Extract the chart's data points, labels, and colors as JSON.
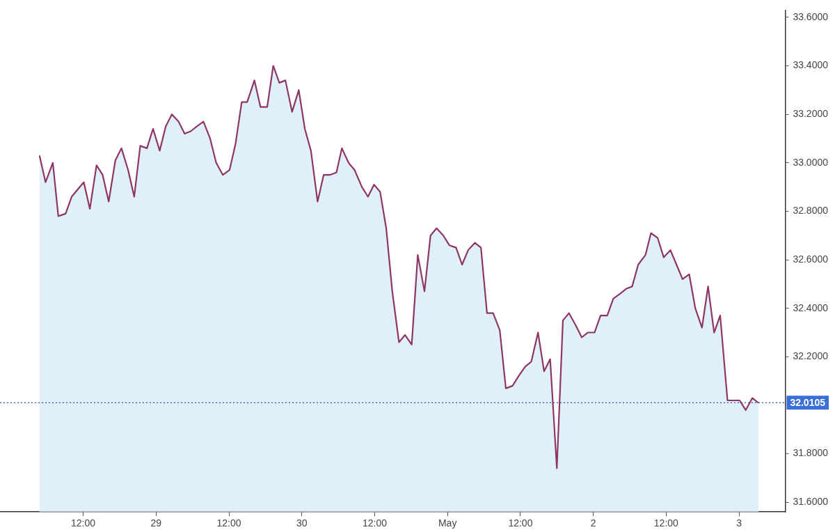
{
  "chart_data": {
    "type": "area",
    "x": [
      "--04-28T04:48",
      "--04-28T05:48",
      "--04-28T07:00",
      "--04-28T07:54",
      "--04-28T09:06",
      "--04-28T10:06",
      "--04-28T11:06",
      "--04-28T12:06",
      "--04-28T13:06",
      "--04-28T14:12",
      "--04-28T15:12",
      "--04-28T16:12",
      "--04-28T17:18",
      "--04-28T18:18",
      "--04-28T19:24",
      "--04-28T20:24",
      "--04-28T21:24",
      "--04-28T22:30",
      "--04-28T23:30",
      "--04-29T00:36",
      "--04-29T01:36",
      "--04-29T02:36",
      "--04-29T03:42",
      "--04-29T04:42",
      "--04-29T05:42",
      "--04-29T06:42",
      "--04-29T07:48",
      "--04-29T08:54",
      "--04-29T09:54",
      "--04-29T11:00",
      "--04-29T12:06",
      "--04-29T13:06",
      "--04-29T14:06",
      "--04-29T15:00",
      "--04-29T16:12",
      "--04-29T17:12",
      "--04-29T18:18",
      "--04-29T19:18",
      "--04-29T20:18",
      "--04-29T21:18",
      "--04-29T22:24",
      "--04-29T23:30",
      "--04-30T00:30",
      "--04-30T01:30",
      "--04-30T02:36",
      "--04-30T03:36",
      "--04-30T04:36",
      "--04-30T05:42",
      "--04-30T06:36",
      "--04-30T07:42",
      "--04-30T08:42",
      "--04-30T09:54",
      "--04-30T10:54",
      "--04-30T11:54",
      "--04-30T12:54",
      "--04-30T13:54",
      "--04-30T14:54",
      "--04-30T16:00",
      "--04-30T17:00",
      "--04-30T18:06",
      "--04-30T19:06",
      "--04-30T20:12",
      "--04-30T21:12",
      "--04-30T22:12",
      "--04-30T23:18",
      "--05-01T00:18",
      "--05-01T01:24",
      "--05-01T02:24",
      "--05-01T03:24",
      "--05-01T04:30",
      "--05-01T05:30",
      "--05-01T06:30",
      "--05-01T07:30",
      "--05-01T08:36",
      "--05-01T09:36",
      "--05-01T10:42",
      "--05-01T11:42",
      "--05-01T12:48",
      "--05-01T13:48",
      "--05-01T14:54",
      "--05-01T15:54",
      "--05-01T16:54",
      "--05-01T18:00",
      "--05-01T19:00",
      "--05-01T20:00",
      "--05-01T21:06",
      "--05-01T22:06",
      "--05-01T23:06",
      "--05-02T00:12",
      "--05-02T01:12",
      "--05-02T02:18",
      "--05-02T03:18",
      "--05-02T04:24",
      "--05-02T05:24",
      "--05-02T06:24",
      "--05-02T07:24",
      "--05-02T08:36",
      "--05-02T09:30",
      "--05-02T10:36",
      "--05-02T11:36",
      "--05-02T12:42",
      "--05-02T13:42",
      "--05-02T14:42",
      "--05-02T15:48",
      "--05-02T16:48",
      "--05-02T17:54",
      "--05-02T18:54",
      "--05-02T19:54",
      "--05-02T20:54",
      "--05-02T22:06",
      "--05-02T23:00",
      "--05-03T00:06",
      "--05-03T01:06",
      "--05-03T02:12",
      "--05-03T03:12"
    ],
    "series": [
      {
        "color": "#8e3563",
        "values": [
          33.03,
          32.92,
          33.0,
          32.78,
          32.79,
          32.86,
          32.89,
          32.92,
          32.81,
          32.99,
          32.95,
          32.84,
          33.01,
          33.06,
          32.97,
          32.86,
          33.07,
          33.06,
          33.14,
          33.05,
          33.15,
          33.2,
          33.17,
          33.12,
          33.13,
          33.15,
          33.17,
          33.1,
          33.0,
          32.95,
          32.97,
          33.08,
          33.25,
          33.25,
          33.34,
          33.23,
          33.23,
          33.4,
          33.33,
          33.34,
          33.21,
          33.3,
          33.14,
          33.05,
          32.84,
          32.95,
          32.95,
          32.96,
          33.06,
          33.0,
          32.97,
          32.9,
          32.86,
          32.91,
          32.88,
          32.73,
          32.47,
          32.26,
          32.29,
          32.25,
          32.62,
          32.47,
          32.7,
          32.73,
          32.7,
          32.66,
          32.65,
          32.58,
          32.64,
          32.67,
          32.65,
          32.38,
          32.38,
          32.31,
          32.07,
          32.08,
          32.12,
          32.16,
          32.18,
          32.3,
          32.14,
          32.19,
          31.74,
          32.35,
          32.38,
          32.33,
          32.28,
          32.3,
          32.3,
          32.37,
          32.37,
          32.44,
          32.46,
          32.48,
          32.49,
          32.58,
          32.62,
          32.71,
          32.69,
          32.61,
          32.64,
          32.58,
          32.52,
          32.54,
          32.4,
          32.32,
          32.49,
          32.3,
          32.37,
          32.02,
          32.02,
          32.02,
          31.98,
          32.03,
          32.01
        ]
      }
    ],
    "xlim": [
      "--04-27T22:18",
      "--05-03T07:36"
    ],
    "xticks": [
      {
        "value": "--04-28T12:00",
        "label": "12:00"
      },
      {
        "value": "--04-29",
        "label": "29"
      },
      {
        "value": "--04-29T12:00",
        "label": "12:00"
      },
      {
        "value": "--04-30",
        "label": "30"
      },
      {
        "value": "--04-30T12:00",
        "label": "12:00"
      },
      {
        "value": "--05-01",
        "label": "May"
      },
      {
        "value": "--05-01T12:00",
        "label": "12:00"
      },
      {
        "value": "--05-02",
        "label": "2"
      },
      {
        "value": "--05-02T12:00",
        "label": "12:00"
      },
      {
        "value": "--05-03",
        "label": "3"
      }
    ],
    "ylim": [
      31.56,
      33.63
    ],
    "yticks": [
      {
        "value": 31.6,
        "label": "31.6000"
      },
      {
        "value": 31.8,
        "label": "31.8000"
      },
      {
        "value": 32.2,
        "label": "32.2000"
      },
      {
        "value": 32.4,
        "label": "32.4000"
      },
      {
        "value": 32.6,
        "label": "32.6000"
      },
      {
        "value": 32.8,
        "label": "32.8000"
      },
      {
        "value": 33.0,
        "label": "33.0000"
      },
      {
        "value": 33.2,
        "label": "33.2000"
      },
      {
        "value": 33.4,
        "label": "33.4000"
      },
      {
        "value": 33.6,
        "label": "33.6000"
      }
    ],
    "ref_lines": [
      {
        "axis": "y",
        "value": 32.0105,
        "label": "32.0105",
        "color": "#2f4fa8",
        "line_style": "dotted"
      }
    ],
    "grid": false,
    "legend": false,
    "marker": "none"
  }
}
